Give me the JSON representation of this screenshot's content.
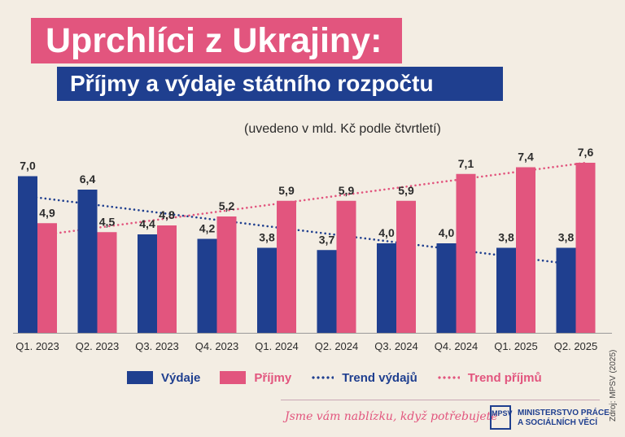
{
  "title": "Uprchlíci z Ukrajiny:",
  "subtitle_banner": "Příjmy a výdaje státního rozpočtu",
  "note": "(uvedeno v mld. Kč podle čtvrtletí)",
  "legend": {
    "vydaje": "Výdaje",
    "prijmy": "Příjmy",
    "trend_vydaju": "Trend výdajů",
    "trend_prijmu": "Trend příjmů"
  },
  "footer": {
    "slogan": "Jsme vám nablízku, když potřebujete",
    "logo_text": "MPSV",
    "ministry": "MINISTERSTVO PRÁCE\nA SOCIÁLNÍCH VĚCÍ",
    "source": "Zdroj: MPSV (2025)"
  },
  "colors": {
    "vydaje": "#1f3f8f",
    "prijmy": "#e2557e"
  },
  "chart_data": {
    "type": "bar",
    "categories": [
      "Q1. 2023",
      "Q2. 2023",
      "Q3. 2023",
      "Q4. 2023",
      "Q1. 2024",
      "Q2. 2024",
      "Q3. 2024",
      "Q4. 2024",
      "Q1. 2025",
      "Q2. 2025"
    ],
    "series": [
      {
        "name": "Výdaje",
        "values": [
          7.0,
          6.4,
          4.4,
          4.2,
          3.8,
          3.7,
          4.0,
          4.0,
          3.8,
          3.8
        ],
        "labels": [
          "7,0",
          "6,4",
          "4,4",
          "4,2",
          "3,8",
          "3,7",
          "4,0",
          "4,0",
          "3,8",
          "3,8"
        ]
      },
      {
        "name": "Příjmy",
        "values": [
          4.9,
          4.5,
          4.8,
          5.2,
          5.9,
          5.9,
          5.9,
          7.1,
          7.4,
          7.6
        ],
        "labels": [
          "4,9",
          "4,5",
          "4,8",
          "5,2",
          "5,9",
          "5,9",
          "5,9",
          "7,1",
          "7,4",
          "7,6"
        ]
      }
    ],
    "trend_lines": [
      {
        "name": "Trend výdajů",
        "start": 6.1,
        "end": 3.1
      },
      {
        "name": "Trend příjmů",
        "start": 4.4,
        "end": 7.6
      }
    ],
    "ylim": [
      0,
      7.6
    ],
    "grid": false,
    "legend_position": "bottom"
  }
}
